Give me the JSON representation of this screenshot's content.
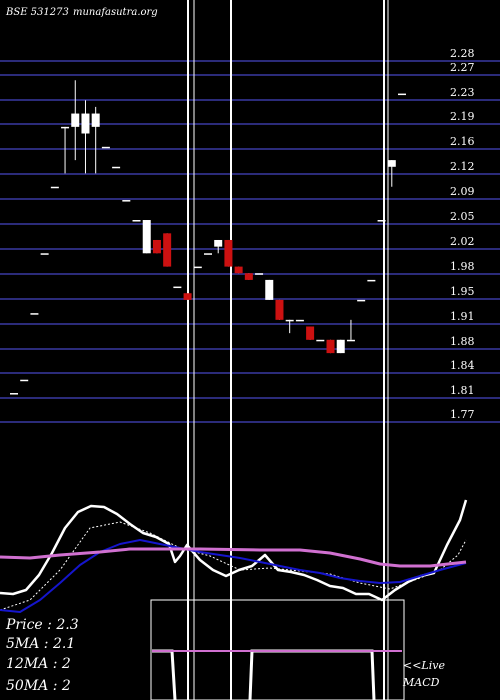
{
  "header": {
    "title_left": "BSE 531273",
    "title_right": "munafasutra.org"
  },
  "stats": {
    "price": "Price  : 2.3",
    "ma5": "5MA : 2.1",
    "ma12": "12MA : 2",
    "ma50": "50MA : 2"
  },
  "macd_label_1": "<<Live",
  "macd_label_2": "MACD",
  "colors": {
    "background": "#000000",
    "grid": "#2b2b7a",
    "up_candle": "#ffffff",
    "down_candle": "#cc1111",
    "price_line": "#ffffff",
    "ma_blue": "#1515cc",
    "ma_pink": "#d070d0"
  },
  "chart_data": {
    "type": "candlestick",
    "ylim": [
      1.75,
      2.3
    ],
    "y_ticks": [
      "2.28",
      "2.27",
      "2.23",
      "2.19",
      "2.16",
      "2.12",
      "2.09",
      "2.05",
      "2.02",
      "1.98",
      "1.95",
      "1.91",
      "1.88",
      "1.84",
      "1.81",
      "1.77"
    ],
    "y_tick_values": [
      2.28,
      2.27,
      2.23,
      2.19,
      2.16,
      2.12,
      2.09,
      2.05,
      2.02,
      1.98,
      1.95,
      1.91,
      1.88,
      1.84,
      1.81,
      1.77
    ],
    "candles": [
      {
        "o": 1.78,
        "h": 1.78,
        "l": 1.78,
        "c": 1.78
      },
      {
        "o": 1.8,
        "h": 1.8,
        "l": 1.8,
        "c": 1.8
      },
      {
        "o": 1.9,
        "h": 1.9,
        "l": 1.9,
        "c": 1.9
      },
      {
        "o": 1.99,
        "h": 1.99,
        "l": 1.99,
        "c": 1.99
      },
      {
        "o": 2.09,
        "h": 2.09,
        "l": 2.09,
        "c": 2.09
      },
      {
        "o": 2.18,
        "h": 2.18,
        "l": 2.11,
        "c": 2.18
      },
      {
        "o": 2.18,
        "h": 2.25,
        "l": 2.13,
        "c": 2.2
      },
      {
        "o": 2.17,
        "h": 2.22,
        "l": 2.11,
        "c": 2.2
      },
      {
        "o": 2.18,
        "h": 2.21,
        "l": 2.11,
        "c": 2.2
      },
      {
        "o": 2.15,
        "h": 2.15,
        "l": 2.15,
        "c": 2.15
      },
      {
        "o": 2.12,
        "h": 2.12,
        "l": 2.12,
        "c": 2.12
      },
      {
        "o": 2.07,
        "h": 2.07,
        "l": 2.07,
        "c": 2.07
      },
      {
        "o": 2.04,
        "h": 2.04,
        "l": 2.04,
        "c": 2.04
      },
      {
        "o": 1.99,
        "h": 2.04,
        "l": 1.99,
        "c": 2.04
      },
      {
        "o": 2.01,
        "h": 2.01,
        "l": 1.99,
        "c": 1.99
      },
      {
        "o": 2.02,
        "h": 2.02,
        "l": 1.97,
        "c": 1.97
      },
      {
        "o": 1.94,
        "h": 1.94,
        "l": 1.94,
        "c": 1.94
      },
      {
        "o": 1.93,
        "h": 1.93,
        "l": 1.92,
        "c": 1.92
      },
      {
        "o": 1.97,
        "h": 1.97,
        "l": 1.97,
        "c": 1.97
      },
      {
        "o": 1.99,
        "h": 1.99,
        "l": 1.99,
        "c": 1.99
      },
      {
        "o": 2.0,
        "h": 2.01,
        "l": 1.99,
        "c": 2.01
      },
      {
        "o": 2.01,
        "h": 2.01,
        "l": 1.97,
        "c": 1.97
      },
      {
        "o": 1.97,
        "h": 1.97,
        "l": 1.96,
        "c": 1.96
      },
      {
        "o": 1.96,
        "h": 1.96,
        "l": 1.95,
        "c": 1.95
      },
      {
        "o": 1.96,
        "h": 1.96,
        "l": 1.96,
        "c": 1.96
      },
      {
        "o": 1.92,
        "h": 1.95,
        "l": 1.92,
        "c": 1.95
      },
      {
        "o": 1.92,
        "h": 1.92,
        "l": 1.89,
        "c": 1.89
      },
      {
        "o": 1.89,
        "h": 1.89,
        "l": 1.87,
        "c": 1.89
      },
      {
        "o": 1.89,
        "h": 1.89,
        "l": 1.89,
        "c": 1.89
      },
      {
        "o": 1.88,
        "h": 1.88,
        "l": 1.86,
        "c": 1.86
      },
      {
        "o": 1.86,
        "h": 1.86,
        "l": 1.86,
        "c": 1.86
      },
      {
        "o": 1.86,
        "h": 1.86,
        "l": 1.84,
        "c": 1.84
      },
      {
        "o": 1.84,
        "h": 1.86,
        "l": 1.84,
        "c": 1.86
      },
      {
        "o": 1.86,
        "h": 1.89,
        "l": 1.86,
        "c": 1.86
      },
      {
        "o": 1.92,
        "h": 1.92,
        "l": 1.92,
        "c": 1.92
      },
      {
        "o": 1.95,
        "h": 1.95,
        "l": 1.95,
        "c": 1.95
      },
      {
        "o": 2.04,
        "h": 2.04,
        "l": 2.04,
        "c": 2.04
      },
      {
        "o": 2.12,
        "h": 2.13,
        "l": 2.09,
        "c": 2.13
      },
      {
        "o": 2.23,
        "h": 2.23,
        "l": 2.23,
        "c": 2.23
      }
    ],
    "indicator_lines": [
      {
        "color": "#ffffff",
        "width": 2.5,
        "points": [
          [
            0,
            593
          ],
          [
            13,
            594
          ],
          [
            26,
            590
          ],
          [
            39,
            575
          ],
          [
            52,
            553
          ],
          [
            65,
            528
          ],
          [
            78,
            512
          ],
          [
            91,
            506
          ],
          [
            104,
            507
          ],
          [
            117,
            514
          ],
          [
            130,
            524
          ],
          [
            143,
            533
          ],
          [
            156,
            537
          ],
          [
            169,
            544
          ],
          [
            175,
            562
          ],
          [
            180,
            556
          ],
          [
            187,
            545
          ],
          [
            200,
            560
          ],
          [
            213,
            570
          ],
          [
            226,
            576
          ],
          [
            239,
            570
          ],
          [
            252,
            566
          ],
          [
            265,
            555
          ],
          [
            278,
            570
          ],
          [
            291,
            572
          ],
          [
            304,
            575
          ],
          [
            317,
            580
          ],
          [
            330,
            586
          ],
          [
            343,
            588
          ],
          [
            356,
            594
          ],
          [
            369,
            594
          ],
          [
            382,
            600
          ],
          [
            395,
            590
          ],
          [
            408,
            582
          ],
          [
            421,
            576
          ],
          [
            434,
            573
          ],
          [
            447,
            545
          ],
          [
            460,
            520
          ],
          [
            466,
            500
          ]
        ]
      },
      {
        "color": "#ffffff",
        "width": 1,
        "dash": "2,2",
        "points": [
          [
            0,
            610
          ],
          [
            30,
            600
          ],
          [
            60,
            570
          ],
          [
            90,
            528
          ],
          [
            120,
            522
          ],
          [
            150,
            533
          ],
          [
            180,
            548
          ],
          [
            210,
            556
          ],
          [
            240,
            570
          ],
          [
            270,
            568
          ],
          [
            300,
            571
          ],
          [
            330,
            574
          ],
          [
            360,
            583
          ],
          [
            390,
            589
          ],
          [
            420,
            578
          ],
          [
            440,
            570
          ],
          [
            458,
            555
          ],
          [
            466,
            540
          ]
        ]
      },
      {
        "color": "#1515cc",
        "width": 2,
        "points": [
          [
            0,
            610
          ],
          [
            20,
            612
          ],
          [
            40,
            600
          ],
          [
            60,
            583
          ],
          [
            80,
            565
          ],
          [
            100,
            552
          ],
          [
            120,
            544
          ],
          [
            140,
            540
          ],
          [
            160,
            544
          ],
          [
            180,
            548
          ],
          [
            200,
            552
          ],
          [
            220,
            555
          ],
          [
            240,
            558
          ],
          [
            260,
            562
          ],
          [
            280,
            566
          ],
          [
            300,
            570
          ],
          [
            320,
            573
          ],
          [
            340,
            578
          ],
          [
            360,
            581
          ],
          [
            380,
            583
          ],
          [
            400,
            582
          ],
          [
            420,
            576
          ],
          [
            440,
            570
          ],
          [
            466,
            563
          ]
        ]
      },
      {
        "color": "#d070d0",
        "width": 3,
        "points": [
          [
            0,
            557
          ],
          [
            30,
            558
          ],
          [
            60,
            555
          ],
          [
            100,
            552
          ],
          [
            130,
            549
          ],
          [
            160,
            549
          ],
          [
            200,
            549
          ],
          [
            260,
            550
          ],
          [
            300,
            550
          ],
          [
            330,
            553
          ],
          [
            360,
            559
          ],
          [
            380,
            564
          ],
          [
            400,
            566
          ],
          [
            430,
            566
          ],
          [
            466,
            562
          ]
        ]
      }
    ],
    "macd_panel_lines": [
      {
        "color": "#ffffff",
        "width": 3,
        "points": [
          [
            152,
            651
          ],
          [
            172,
            651
          ],
          [
            175,
            700
          ]
        ]
      },
      {
        "color": "#ffffff",
        "width": 3,
        "points": [
          [
            250,
            700
          ],
          [
            252,
            651
          ],
          [
            372,
            651
          ],
          [
            374,
            700
          ]
        ]
      },
      {
        "color": "#d070d0",
        "width": 2,
        "points": [
          [
            152,
            651
          ],
          [
            402,
            651
          ]
        ]
      }
    ]
  }
}
